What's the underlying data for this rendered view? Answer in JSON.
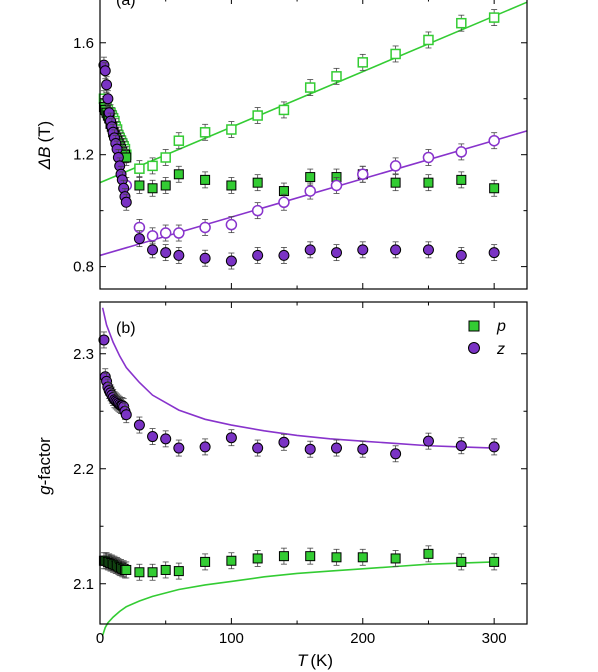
{
  "chart_data": [
    {
      "type": "scatter",
      "panel_label": "(a)",
      "xlabel": "T",
      "xunit": "(K)",
      "ylabel": "ΔB",
      "yunit": "(T)",
      "xlim": [
        0,
        325
      ],
      "ylim": [
        0.72,
        1.76
      ],
      "xticks": [
        0,
        100,
        200,
        300
      ],
      "yticks": [
        "0.8",
        "1.2",
        "1.6"
      ],
      "ytick_values": [
        0.8,
        1.2,
        1.6
      ],
      "grid": false,
      "colors": {
        "green": "#33cc33",
        "purple": "#8833cc",
        "green_fill": "#33cc33",
        "purple_fill": "#7a33c4"
      },
      "series": [
        {
          "marker": "square-open",
          "color": "#33cc33",
          "x": [
            3,
            4,
            5,
            6,
            7,
            8,
            9,
            10,
            11,
            12,
            13,
            14,
            15,
            16,
            17,
            18,
            19,
            20,
            30,
            40,
            50,
            60,
            80,
            100,
            120,
            140,
            160,
            180,
            200,
            225,
            250,
            275,
            300
          ],
          "y": [
            1.4,
            1.38,
            1.37,
            1.36,
            1.35,
            1.35,
            1.34,
            1.33,
            1.32,
            1.3,
            1.29,
            1.27,
            1.26,
            1.25,
            1.24,
            1.23,
            1.22,
            1.2,
            1.15,
            1.16,
            1.19,
            1.25,
            1.28,
            1.29,
            1.34,
            1.36,
            1.44,
            1.48,
            1.53,
            1.56,
            1.61,
            1.67,
            1.69
          ]
        },
        {
          "marker": "square-filled",
          "color": "#33cc33",
          "x": [
            3,
            4,
            5,
            6,
            7,
            8,
            9,
            10,
            11,
            12,
            13,
            14,
            15,
            16,
            17,
            18,
            19,
            20,
            30,
            40,
            50,
            60,
            80,
            100,
            120,
            140,
            160,
            180,
            200,
            225,
            250,
            275,
            300
          ],
          "y": [
            1.37,
            1.36,
            1.35,
            1.34,
            1.33,
            1.31,
            1.3,
            1.28,
            1.27,
            1.26,
            1.25,
            1.24,
            1.23,
            1.22,
            1.21,
            1.2,
            1.2,
            1.19,
            1.09,
            1.08,
            1.09,
            1.13,
            1.11,
            1.09,
            1.1,
            1.07,
            1.12,
            1.12,
            1.13,
            1.1,
            1.1,
            1.11,
            1.08
          ]
        },
        {
          "marker": "circle-open",
          "color": "#8833cc",
          "x": [
            20,
            30,
            40,
            50,
            60,
            80,
            100,
            120,
            140,
            160,
            180,
            200,
            225,
            250,
            275,
            300
          ],
          "y": [
            1.09,
            0.94,
            0.91,
            0.92,
            0.92,
            0.94,
            0.95,
            1.0,
            1.03,
            1.07,
            1.09,
            1.13,
            1.16,
            1.19,
            1.21,
            1.25
          ]
        },
        {
          "marker": "circle-filled",
          "color": "#7a33c4",
          "x": [
            3,
            4,
            5,
            6,
            7,
            8,
            9,
            10,
            11,
            12,
            13,
            14,
            15,
            16,
            17,
            18,
            19,
            20,
            30,
            40,
            50,
            60,
            80,
            100,
            120,
            140,
            160,
            180,
            200,
            225,
            250,
            275,
            300
          ],
          "y": [
            1.52,
            1.5,
            1.45,
            1.4,
            1.35,
            1.32,
            1.3,
            1.28,
            1.26,
            1.24,
            1.22,
            1.19,
            1.16,
            1.13,
            1.11,
            1.08,
            1.05,
            1.03,
            0.9,
            0.86,
            0.85,
            0.84,
            0.83,
            0.82,
            0.84,
            0.84,
            0.86,
            0.85,
            0.86,
            0.86,
            0.86,
            0.84,
            0.85
          ]
        }
      ],
      "lines": [
        {
          "color": "#33cc33",
          "x": [
            0,
            325
          ],
          "y": [
            1.1,
            1.745
          ]
        },
        {
          "color": "#8833cc",
          "x": [
            0,
            325
          ],
          "y": [
            0.84,
            1.285
          ]
        }
      ]
    },
    {
      "type": "scatter",
      "panel_label": "(b)",
      "xlabel": "T",
      "xunit": "(K)",
      "ylabel": "g",
      "ylabel_suffix": "-factor",
      "xlim": [
        0,
        325
      ],
      "ylim": [
        2.065,
        2.345
      ],
      "xticks": [
        0,
        100,
        200,
        300
      ],
      "yticks": [
        "2.1",
        "2.2",
        "2.3"
      ],
      "ytick_values": [
        2.1,
        2.2,
        2.3
      ],
      "grid": false,
      "legend_position": "top-right",
      "colors": {
        "green": "#33cc33",
        "purple": "#8833cc",
        "green_fill": "#33cc33",
        "purple_fill": "#7a33c4"
      },
      "series": [
        {
          "name": "p",
          "marker": "square-filled",
          "color": "#33cc33",
          "x": [
            3,
            4,
            5,
            6,
            7,
            8,
            9,
            10,
            11,
            12,
            13,
            14,
            15,
            16,
            17,
            18,
            19,
            20,
            30,
            40,
            50,
            60,
            80,
            100,
            120,
            140,
            160,
            180,
            200,
            225,
            250,
            275,
            300
          ],
          "y": [
            2.12,
            2.12,
            2.12,
            2.119,
            2.119,
            2.118,
            2.118,
            2.117,
            2.117,
            2.116,
            2.116,
            2.115,
            2.114,
            2.114,
            2.113,
            2.113,
            2.112,
            2.112,
            2.11,
            2.11,
            2.112,
            2.111,
            2.119,
            2.12,
            2.122,
            2.124,
            2.124,
            2.123,
            2.123,
            2.122,
            2.126,
            2.119,
            2.119
          ]
        },
        {
          "name": "z",
          "marker": "circle-filled",
          "color": "#7a33c4",
          "x": [
            3,
            4,
            5,
            6,
            7,
            8,
            9,
            10,
            11,
            12,
            13,
            14,
            15,
            16,
            17,
            18,
            19,
            20,
            30,
            40,
            50,
            60,
            80,
            100,
            120,
            140,
            160,
            180,
            200,
            225,
            250,
            275,
            300
          ],
          "y": [
            2.312,
            2.28,
            2.276,
            2.271,
            2.268,
            2.266,
            2.264,
            2.262,
            2.26,
            2.259,
            2.258,
            2.257,
            2.256,
            2.255,
            2.255,
            2.254,
            2.25,
            2.247,
            2.238,
            2.228,
            2.226,
            2.218,
            2.219,
            2.227,
            2.218,
            2.223,
            2.217,
            2.218,
            2.217,
            2.213,
            2.224,
            2.22,
            2.219
          ]
        }
      ],
      "curves": [
        {
          "color": "#8833cc",
          "x": [
            2,
            5,
            10,
            15,
            20,
            30,
            40,
            60,
            80,
            100,
            125,
            150,
            175,
            200,
            225,
            250,
            275,
            300
          ],
          "y": [
            2.34,
            2.325,
            2.31,
            2.298,
            2.288,
            2.275,
            2.264,
            2.251,
            2.243,
            2.238,
            2.233,
            2.229,
            2.226,
            2.224,
            2.222,
            2.22,
            2.219,
            2.218
          ]
        },
        {
          "color": "#33cc33",
          "x": [
            2,
            4,
            6,
            10,
            15,
            20,
            30,
            40,
            60,
            80,
            100,
            125,
            150,
            175,
            200,
            225,
            250,
            275,
            300
          ],
          "y": [
            2.055,
            2.062,
            2.066,
            2.071,
            2.076,
            2.08,
            2.085,
            2.089,
            2.095,
            2.099,
            2.102,
            2.106,
            2.109,
            2.111,
            2.113,
            2.115,
            2.117,
            2.118,
            2.119
          ]
        }
      ]
    }
  ]
}
